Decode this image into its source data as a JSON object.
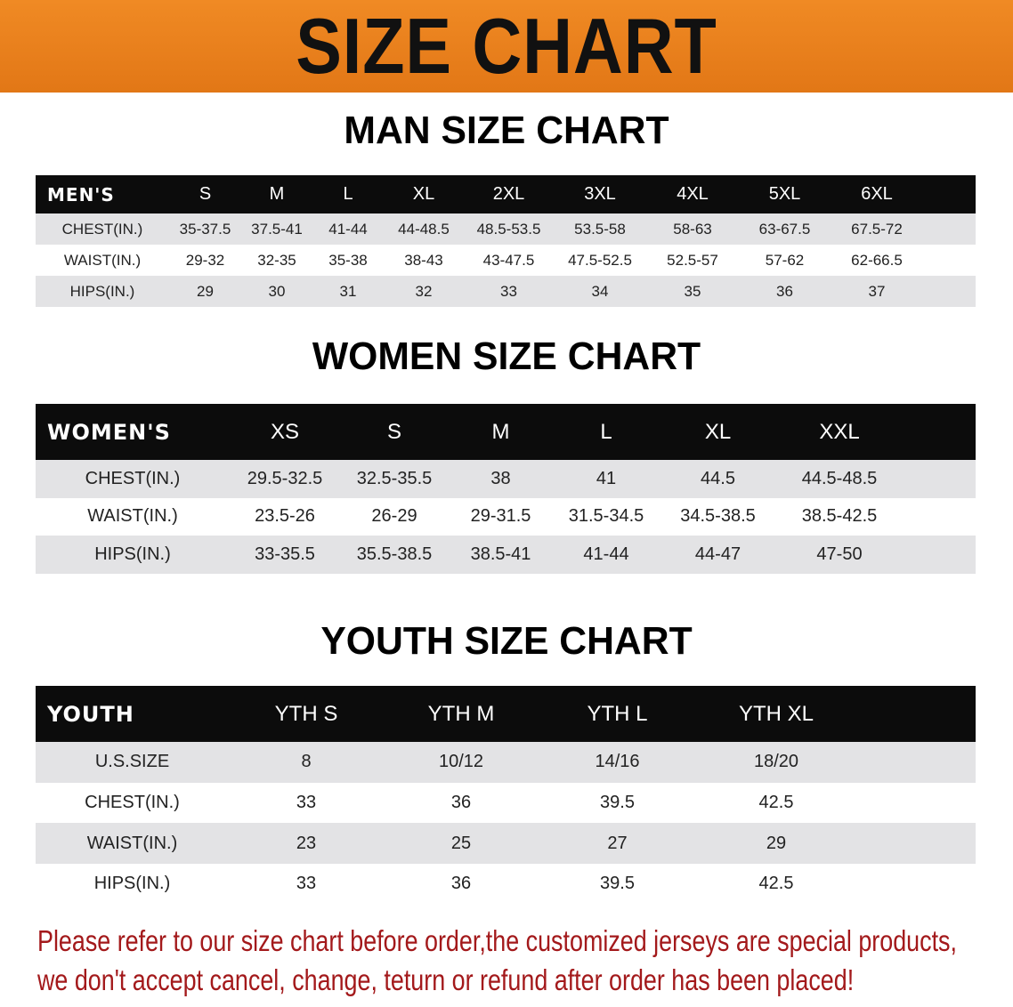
{
  "banner": "SIZE CHART",
  "men": {
    "title": "MAN SIZE CHART",
    "header": [
      "MEN'S",
      "S",
      "M",
      "L",
      "XL",
      "2XL",
      "3XL",
      "4XL",
      "5XL",
      "6XL",
      ""
    ],
    "rows": [
      [
        "CHEST(IN.)",
        "35-37.5",
        "37.5-41",
        "41-44",
        "44-48.5",
        "48.5-53.5",
        "53.5-58",
        "58-63",
        "63-67.5",
        "67.5-72",
        ""
      ],
      [
        "WAIST(IN.)",
        "29-32",
        "32-35",
        "35-38",
        "38-43",
        "43-47.5",
        "47.5-52.5",
        "52.5-57",
        "57-62",
        "62-66.5",
        ""
      ],
      [
        "HIPS(IN.)",
        "29",
        "30",
        "31",
        "32",
        "33",
        "34",
        "35",
        "36",
        "37",
        ""
      ]
    ]
  },
  "women": {
    "title": "WOMEN SIZE CHART",
    "header": [
      "WOMEN'S",
      "XS",
      "S",
      "M",
      "L",
      "XL",
      "XXL",
      ""
    ],
    "rows": [
      [
        "CHEST(IN.)",
        "29.5-32.5",
        "32.5-35.5",
        "38",
        "41",
        "44.5",
        "44.5-48.5",
        ""
      ],
      [
        "WAIST(IN.)",
        "23.5-26",
        "26-29",
        "29-31.5",
        "31.5-34.5",
        "34.5-38.5",
        "38.5-42.5",
        ""
      ],
      [
        "HIPS(IN.)",
        "33-35.5",
        "35.5-38.5",
        "38.5-41",
        "41-44",
        "44-47",
        "47-50",
        ""
      ]
    ]
  },
  "youth": {
    "title": "YOUTH SIZE CHART",
    "header": [
      "YOUTH",
      "YTH S",
      "YTH M",
      "YTH L",
      "YTH XL",
      ""
    ],
    "rows": [
      [
        "U.S.SIZE",
        "8",
        "10/12",
        "14/16",
        "18/20",
        ""
      ],
      [
        "CHEST(IN.)",
        "33",
        "36",
        "39.5",
        "42.5",
        ""
      ],
      [
        "WAIST(IN.)",
        "23",
        "25",
        "27",
        "29",
        ""
      ],
      [
        "HIPS(IN.)",
        "33",
        "36",
        "39.5",
        "42.5",
        ""
      ]
    ]
  },
  "note": [
    "Please refer to our size chart before order,the customized jerseys are special products,",
    "we don't accept cancel, change, teturn or refund after order has been placed!"
  ],
  "colors": {
    "banner": "#e8801e",
    "note": "#a3191b",
    "header_bg": "#0c0c0c",
    "row_alt": "#e3e3e5"
  }
}
